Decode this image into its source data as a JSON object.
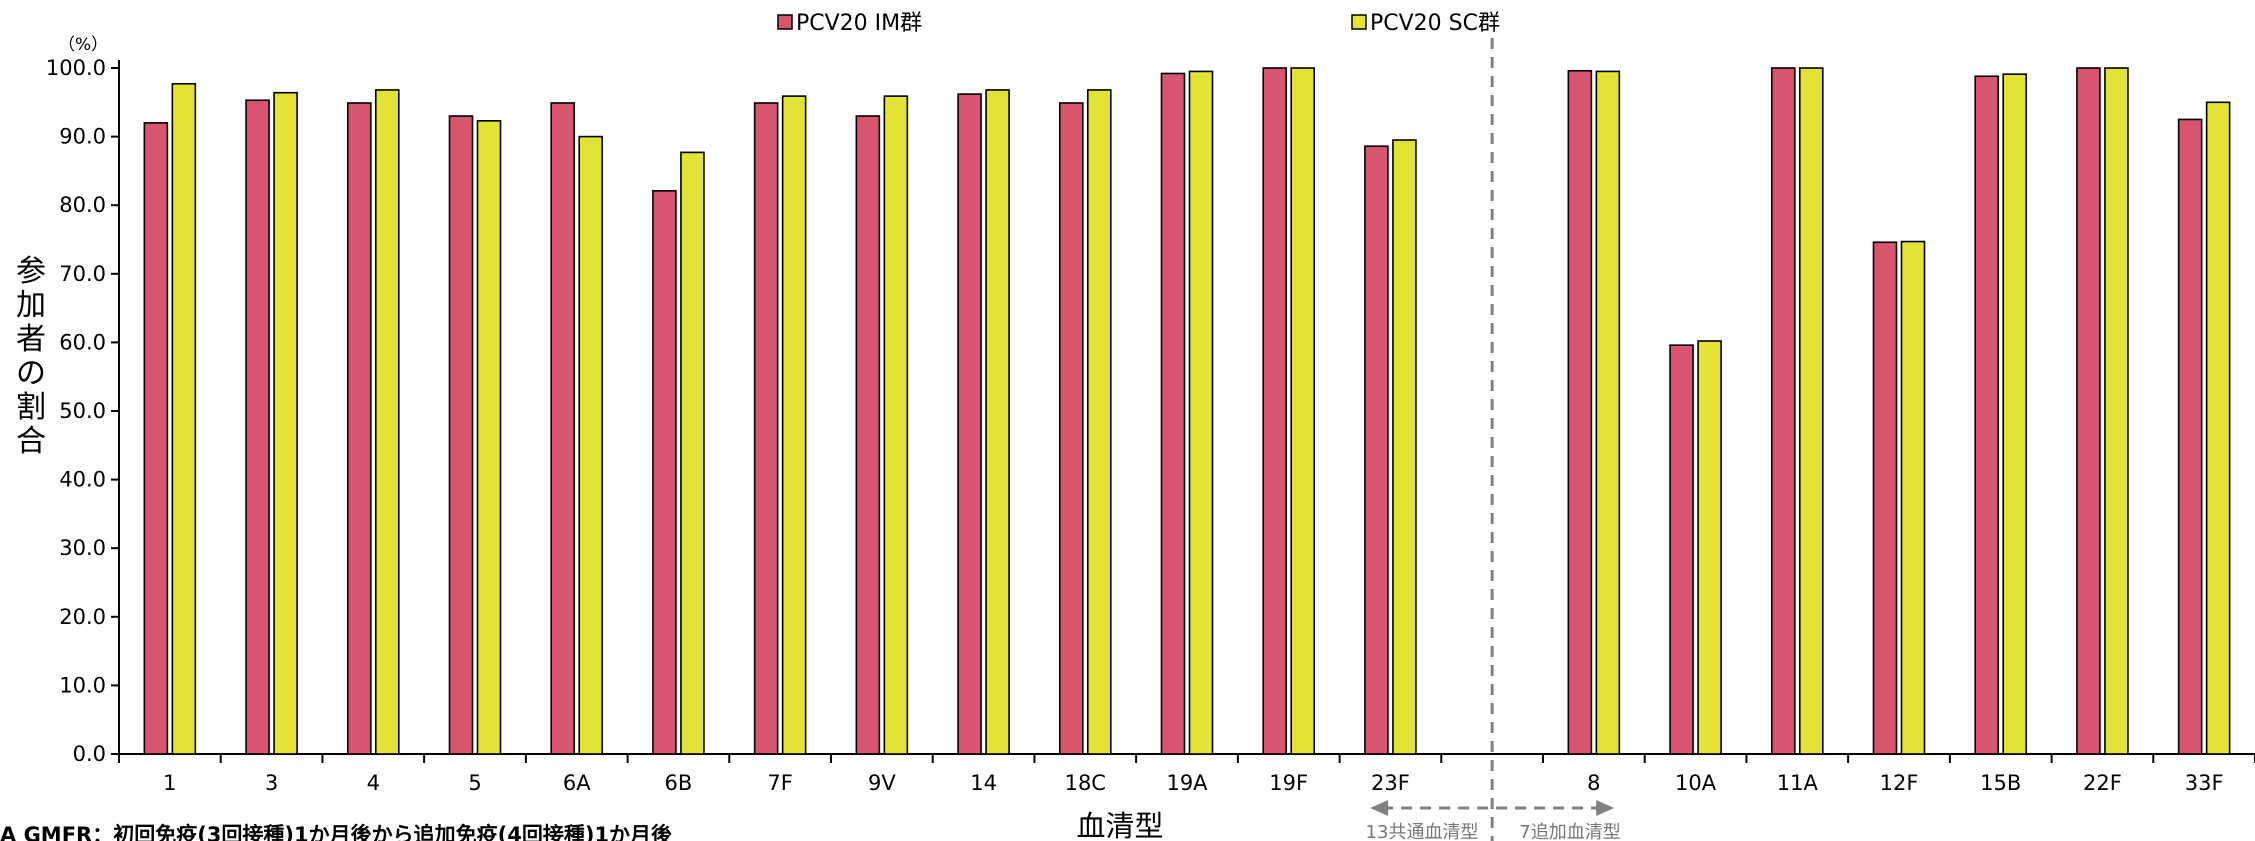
{
  "chart_data": {
    "type": "bar",
    "categories": [
      "1",
      "3",
      "4",
      "5",
      "6A",
      "6B",
      "7F",
      "9V",
      "14",
      "18C",
      "19A",
      "19F",
      "23F",
      "",
      "8",
      "10A",
      "11A",
      "12F",
      "15B",
      "22F",
      "33F"
    ],
    "series": [
      {
        "name": "PCV20 IM群",
        "color": "#d9546f",
        "values": [
          92.0,
          95.3,
          94.9,
          93.0,
          94.9,
          82.1,
          94.9,
          93.0,
          96.2,
          94.9,
          99.2,
          100.0,
          88.6,
          null,
          99.6,
          59.6,
          100.0,
          74.6,
          98.8,
          100.0,
          92.5
        ]
      },
      {
        "name": "PCV20 SC群",
        "color": "#e3e336",
        "values": [
          97.7,
          96.4,
          96.8,
          92.3,
          90.0,
          87.7,
          95.9,
          95.9,
          96.8,
          96.8,
          99.5,
          100.0,
          89.5,
          null,
          99.5,
          60.2,
          100.0,
          74.7,
          99.1,
          100.0,
          95.0
        ]
      }
    ],
    "ylim": [
      0,
      100
    ],
    "yticks": [
      "0.0",
      "10.0",
      "20.0",
      "30.0",
      "40.0",
      "50.0",
      "60.0",
      "70.0",
      "80.0",
      "90.0",
      "100.0"
    ],
    "y_unit": "（%）",
    "ylabel": "参加者の割合",
    "xlabel": "血清型",
    "legend_position": "top",
    "group_labels": {
      "left": "13共通血清型",
      "right": "7追加血清型"
    },
    "footnote": "A GMFR：初回免疫(3回接種)1か月後から追加免疫(4回接種)1か月後"
  }
}
